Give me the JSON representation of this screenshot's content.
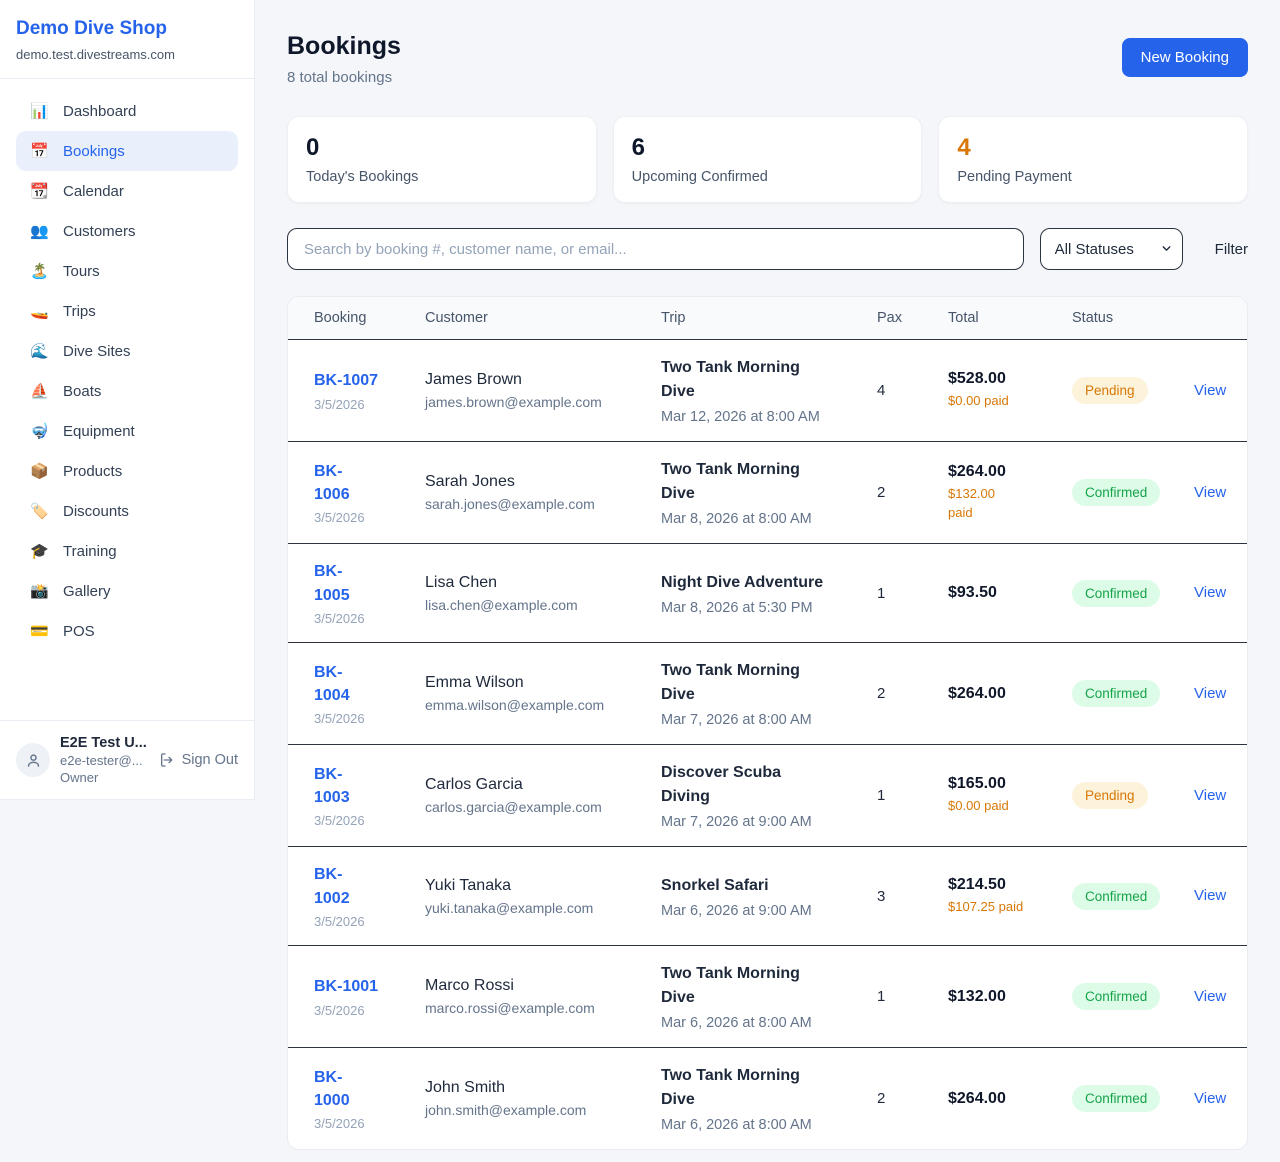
{
  "colors": {
    "accent": "#2563eb",
    "pending": "#d97706",
    "confirmed": "#16a34a"
  },
  "brand": {
    "name": "Demo Dive Shop",
    "domain": "demo.test.divestreams.com"
  },
  "sidebar": {
    "items": [
      {
        "label": "Dashboard",
        "icon": "📊",
        "icon_name": "bar-chart-icon",
        "active": false
      },
      {
        "label": "Bookings",
        "icon": "📅",
        "icon_name": "calendar-icon",
        "active": true
      },
      {
        "label": "Calendar",
        "icon": "📆",
        "icon_name": "tear-off-calendar-icon",
        "active": false
      },
      {
        "label": "Customers",
        "icon": "👥",
        "icon_name": "people-icon",
        "active": false
      },
      {
        "label": "Tours",
        "icon": "🏝️",
        "icon_name": "island-icon",
        "active": false
      },
      {
        "label": "Trips",
        "icon": "🚤",
        "icon_name": "speedboat-icon",
        "active": false
      },
      {
        "label": "Dive Sites",
        "icon": "🌊",
        "icon_name": "wave-icon",
        "active": false
      },
      {
        "label": "Boats",
        "icon": "⛵",
        "icon_name": "sailboat-icon",
        "active": false
      },
      {
        "label": "Equipment",
        "icon": "🤿",
        "icon_name": "diving-mask-icon",
        "active": false
      },
      {
        "label": "Products",
        "icon": "📦",
        "icon_name": "package-icon",
        "active": false
      },
      {
        "label": "Discounts",
        "icon": "🏷️",
        "icon_name": "tag-icon",
        "active": false
      },
      {
        "label": "Training",
        "icon": "🎓",
        "icon_name": "graduation-cap-icon",
        "active": false
      },
      {
        "label": "Gallery",
        "icon": "📸",
        "icon_name": "camera-icon",
        "active": false
      },
      {
        "label": "POS",
        "icon": "💳",
        "icon_name": "credit-card-icon",
        "active": false
      }
    ],
    "user": {
      "name": "E2E Test U...",
      "email": "e2e-tester@...",
      "role": "Owner",
      "sign_out_label": "Sign Out"
    }
  },
  "header": {
    "title": "Bookings",
    "subtitle": "8 total bookings",
    "new_booking_label": "New Booking"
  },
  "stats": [
    {
      "value": "0",
      "label": "Today's Bookings",
      "color": "#0f172a"
    },
    {
      "value": "6",
      "label": "Upcoming Confirmed",
      "color": "#0f172a"
    },
    {
      "value": "4",
      "label": "Pending Payment",
      "color": "#d97706"
    }
  ],
  "filters": {
    "search_placeholder": "Search by booking #, customer name, or email...",
    "status_selected": "All Statuses",
    "filter_label": "Filter"
  },
  "table": {
    "columns": [
      "Booking",
      "Customer",
      "Trip",
      "Pax",
      "Total",
      "Status"
    ],
    "view_label": "View",
    "rows": [
      {
        "id": "BK-1007",
        "id_wrapped": false,
        "date": "3/5/2026",
        "customer": "James Brown",
        "email": "james.brown@example.com",
        "trip": "Two Tank Morning Dive",
        "trip_time": "Mar 12, 2026 at 8:00 AM",
        "pax": "4",
        "total": "$528.00",
        "paid": "$0.00 paid",
        "paid_wrapped": false,
        "status": "Pending"
      },
      {
        "id": "BK-1006",
        "id_wrapped": true,
        "date": "3/5/2026",
        "customer": "Sarah Jones",
        "email": "sarah.jones@example.com",
        "trip": "Two Tank Morning Dive",
        "trip_time": "Mar 8, 2026 at 8:00 AM",
        "pax": "2",
        "total": "$264.00",
        "paid": "$132.00 paid",
        "paid_wrapped": true,
        "status": "Confirmed"
      },
      {
        "id": "BK-1005",
        "id_wrapped": true,
        "date": "3/5/2026",
        "customer": "Lisa Chen",
        "email": "lisa.chen@example.com",
        "trip": "Night Dive Adventure",
        "trip_time": "Mar 8, 2026 at 5:30 PM",
        "pax": "1",
        "total": "$93.50",
        "paid": "",
        "paid_wrapped": false,
        "status": "Confirmed"
      },
      {
        "id": "BK-1004",
        "id_wrapped": true,
        "date": "3/5/2026",
        "customer": "Emma Wilson",
        "email": "emma.wilson@example.com",
        "trip": "Two Tank Morning Dive",
        "trip_time": "Mar 7, 2026 at 8:00 AM",
        "pax": "2",
        "total": "$264.00",
        "paid": "",
        "paid_wrapped": false,
        "status": "Confirmed"
      },
      {
        "id": "BK-1003",
        "id_wrapped": true,
        "date": "3/5/2026",
        "customer": "Carlos Garcia",
        "email": "carlos.garcia@example.com",
        "trip": "Discover Scuba Diving",
        "trip_time": "Mar 7, 2026 at 9:00 AM",
        "pax": "1",
        "total": "$165.00",
        "paid": "$0.00 paid",
        "paid_wrapped": false,
        "status": "Pending"
      },
      {
        "id": "BK-1002",
        "id_wrapped": true,
        "date": "3/5/2026",
        "customer": "Yuki Tanaka",
        "email": "yuki.tanaka@example.com",
        "trip": "Snorkel Safari",
        "trip_time": "Mar 6, 2026 at 9:00 AM",
        "pax": "3",
        "total": "$214.50",
        "paid": "$107.25 paid",
        "paid_wrapped": false,
        "status": "Confirmed"
      },
      {
        "id": "BK-1001",
        "id_wrapped": false,
        "date": "3/5/2026",
        "customer": "Marco Rossi",
        "email": "marco.rossi@example.com",
        "trip": "Two Tank Morning Dive",
        "trip_time": "Mar 6, 2026 at 8:00 AM",
        "pax": "1",
        "total": "$132.00",
        "paid": "",
        "paid_wrapped": false,
        "status": "Confirmed"
      },
      {
        "id": "BK-1000",
        "id_wrapped": true,
        "date": "3/5/2026",
        "customer": "John Smith",
        "email": "john.smith@example.com",
        "trip": "Two Tank Morning Dive",
        "trip_time": "Mar 6, 2026 at 8:00 AM",
        "pax": "2",
        "total": "$264.00",
        "paid": "",
        "paid_wrapped": false,
        "status": "Confirmed"
      }
    ]
  }
}
